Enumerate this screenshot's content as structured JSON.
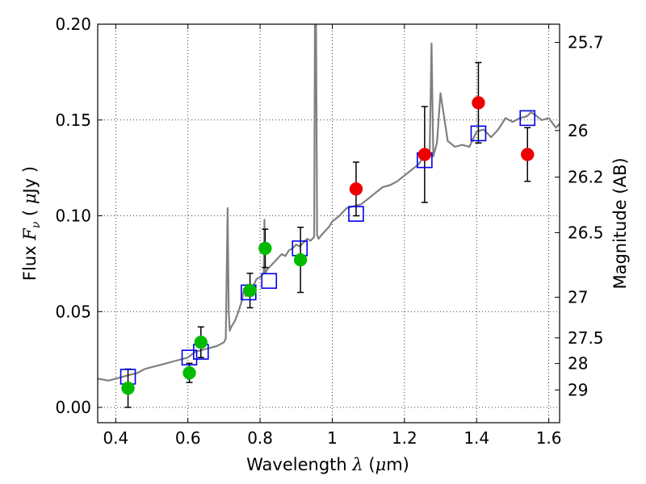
{
  "chart_data": {
    "type": "scatter",
    "xlabel": "Wavelength  λ (μm)",
    "ylabel_left": "Flux  Fν  ( μJy )",
    "ylabel_right": "Magnitude (AB)",
    "xlim": [
      0.35,
      1.63
    ],
    "ylim": [
      -0.008,
      0.2
    ],
    "x_ticks": [
      0.4,
      0.6,
      0.8,
      1.0,
      1.2,
      1.4,
      1.6
    ],
    "x_tick_labels": [
      "0.4",
      "0.6",
      "0.8",
      "1",
      "1.2",
      "1.4",
      "1.6"
    ],
    "y_ticks": [
      0.0,
      0.05,
      0.1,
      0.15,
      0.2
    ],
    "y_tick_labels": [
      "0.00",
      "0.05",
      "0.10",
      "0.15",
      "0.20"
    ],
    "right_ticks": [
      {
        "flux": 0.1905,
        "label": "25.7"
      },
      {
        "flux": 0.1445,
        "label": "26"
      },
      {
        "flux": 0.1202,
        "label": "26.2"
      },
      {
        "flux": 0.0912,
        "label": "26.5"
      },
      {
        "flux": 0.0575,
        "label": "27"
      },
      {
        "flux": 0.0363,
        "label": "27.5"
      },
      {
        "flux": 0.0229,
        "label": "28"
      },
      {
        "flux": 0.0091,
        "label": "29"
      }
    ],
    "grid": true,
    "colors": {
      "model": "#808080",
      "model_photometry": "#0000ee",
      "detections_green": "#00bb00",
      "detections_red": "#ee0000",
      "errorbar": "#000000"
    },
    "model_spectrum": {
      "x": [
        0.35,
        0.38,
        0.4,
        0.42,
        0.44,
        0.46,
        0.48,
        0.5,
        0.52,
        0.54,
        0.56,
        0.58,
        0.6,
        0.62,
        0.64,
        0.66,
        0.68,
        0.7,
        0.705,
        0.71,
        0.713,
        0.716,
        0.72,
        0.73,
        0.74,
        0.75,
        0.755,
        0.76,
        0.765,
        0.77,
        0.78,
        0.79,
        0.8,
        0.81,
        0.812,
        0.814,
        0.82,
        0.83,
        0.84,
        0.85,
        0.86,
        0.87,
        0.88,
        0.89,
        0.9,
        0.91,
        0.92,
        0.93,
        0.94,
        0.95,
        0.952,
        0.955,
        0.958,
        0.962,
        0.97,
        0.98,
        0.99,
        1.0,
        1.02,
        1.04,
        1.06,
        1.08,
        1.1,
        1.12,
        1.14,
        1.16,
        1.18,
        1.2,
        1.22,
        1.24,
        1.25,
        1.26,
        1.27,
        1.275,
        1.28,
        1.29,
        1.3,
        1.32,
        1.34,
        1.36,
        1.38,
        1.4,
        1.42,
        1.44,
        1.46,
        1.48,
        1.5,
        1.52,
        1.54,
        1.55,
        1.56,
        1.58,
        1.6,
        1.62,
        1.63
      ],
      "y": [
        0.015,
        0.014,
        0.015,
        0.016,
        0.017,
        0.018,
        0.02,
        0.021,
        0.022,
        0.023,
        0.024,
        0.025,
        0.026,
        0.029,
        0.03,
        0.031,
        0.032,
        0.034,
        0.036,
        0.104,
        0.05,
        0.04,
        0.042,
        0.045,
        0.05,
        0.056,
        0.062,
        0.058,
        0.064,
        0.06,
        0.063,
        0.067,
        0.068,
        0.07,
        0.098,
        0.07,
        0.072,
        0.074,
        0.076,
        0.078,
        0.08,
        0.079,
        0.082,
        0.083,
        0.085,
        0.084,
        0.086,
        0.088,
        0.087,
        0.089,
        0.2,
        0.2,
        0.09,
        0.088,
        0.09,
        0.092,
        0.094,
        0.097,
        0.1,
        0.104,
        0.105,
        0.106,
        0.109,
        0.112,
        0.115,
        0.116,
        0.118,
        0.121,
        0.124,
        0.127,
        0.13,
        0.132,
        0.133,
        0.19,
        0.131,
        0.138,
        0.164,
        0.139,
        0.136,
        0.137,
        0.136,
        0.144,
        0.145,
        0.141,
        0.145,
        0.151,
        0.149,
        0.151,
        0.152,
        0.154,
        0.153,
        0.15,
        0.151,
        0.146,
        0.148
      ]
    },
    "model_photometry": {
      "x": [
        0.434,
        0.604,
        0.636,
        0.768,
        0.825,
        0.91,
        1.066,
        1.256,
        1.405,
        1.541
      ],
      "y": [
        0.016,
        0.026,
        0.029,
        0.06,
        0.066,
        0.083,
        0.101,
        0.129,
        0.143,
        0.151
      ]
    },
    "detections": [
      {
        "x": 0.434,
        "y": 0.01,
        "err": 0.01,
        "color": "green"
      },
      {
        "x": 0.604,
        "y": 0.018,
        "err": 0.005,
        "color": "green"
      },
      {
        "x": 0.636,
        "y": 0.034,
        "err": 0.008,
        "color": "green"
      },
      {
        "x": 0.772,
        "y": 0.061,
        "err": 0.009,
        "color": "green"
      },
      {
        "x": 0.814,
        "y": 0.083,
        "err": 0.01,
        "color": "green"
      },
      {
        "x": 0.912,
        "y": 0.077,
        "err": 0.017,
        "color": "green"
      },
      {
        "x": 1.066,
        "y": 0.114,
        "err": 0.014,
        "color": "red"
      },
      {
        "x": 1.256,
        "y": 0.132,
        "err": 0.025,
        "color": "red"
      },
      {
        "x": 1.405,
        "y": 0.159,
        "err": 0.021,
        "color": "red"
      },
      {
        "x": 1.541,
        "y": 0.132,
        "err": 0.014,
        "color": "red"
      }
    ]
  }
}
